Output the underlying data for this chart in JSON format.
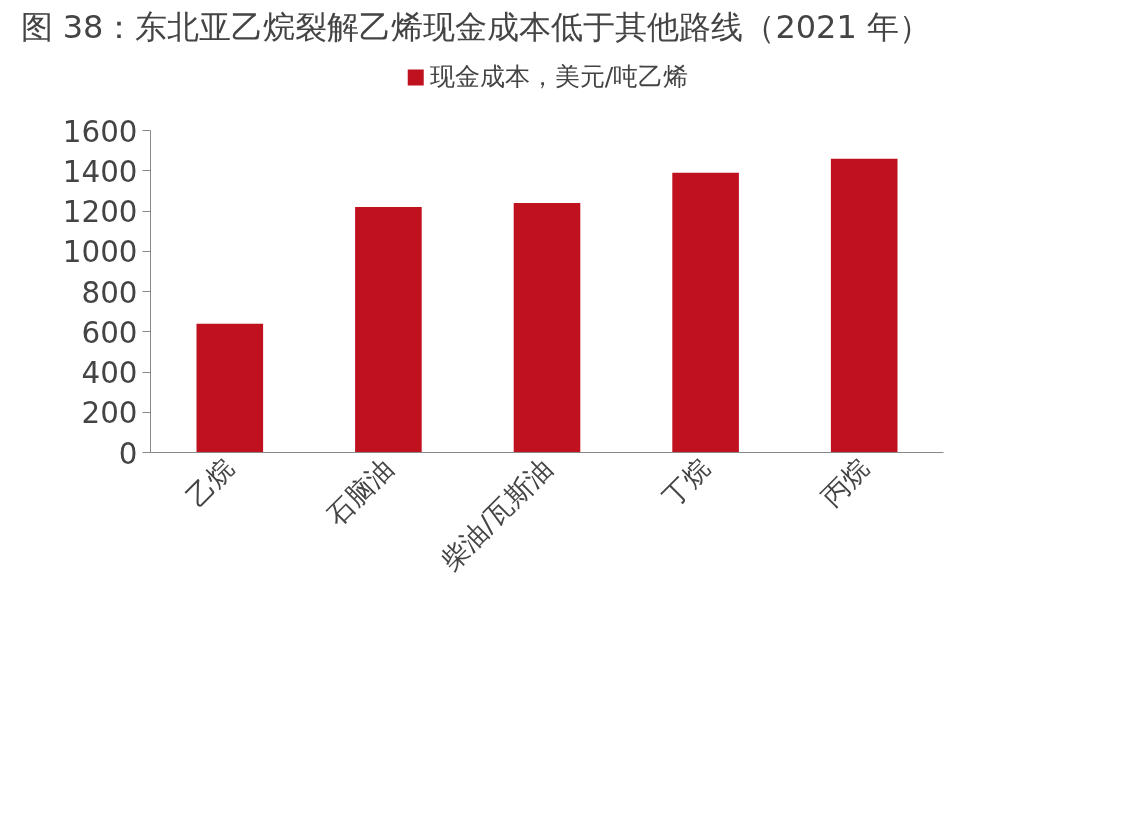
{
  "chart_data": {
    "type": "bar",
    "title": "图 38：东北亚乙烷裂解乙烯现金成本低于其他路线（2021 年）",
    "categories": [
      "乙烷",
      "石脑油",
      "柴油/瓦斯油",
      "丁烷",
      "丙烷"
    ],
    "series": [
      {
        "name": "现金成本，美元/吨乙烯",
        "color": "#c0111f",
        "values": [
          640,
          1220,
          1240,
          1390,
          1460
        ]
      }
    ],
    "ylim": [
      0,
      1600
    ],
    "yticks": [
      0,
      200,
      400,
      600,
      800,
      1000,
      1200,
      1400,
      1600
    ],
    "grid": false,
    "legend": "top"
  }
}
